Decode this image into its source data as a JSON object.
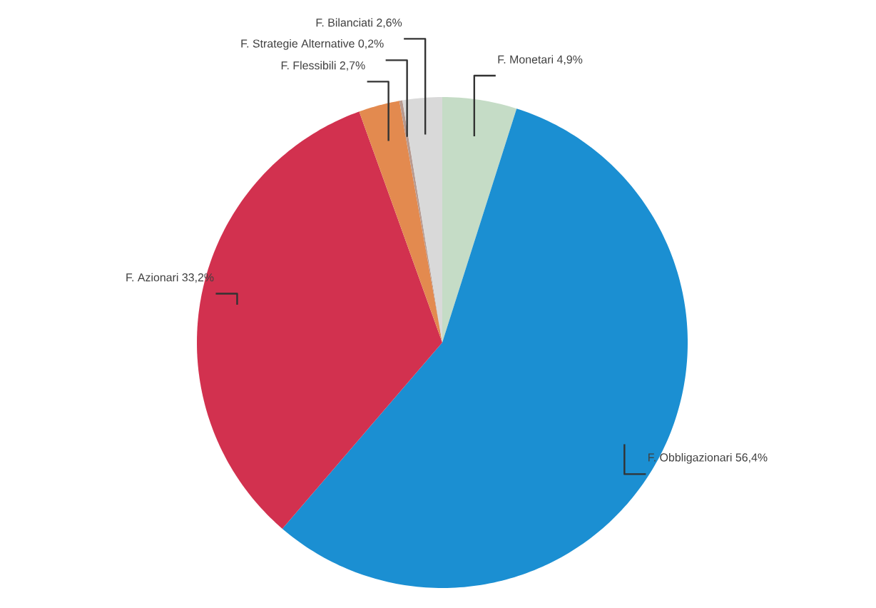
{
  "chart_data": {
    "type": "pie",
    "categories": [
      "F. Monetari",
      "F. Obbligazionari",
      "F. Azionari",
      "F. Flessibili",
      "F. Strategie Alternative",
      "F. Bilanciati"
    ],
    "values": [
      4.9,
      56.4,
      33.2,
      2.7,
      0.2,
      2.6
    ],
    "value_labels": [
      "4,9%",
      "56,4%",
      "33,2%",
      "2,7%",
      "0,2%",
      "2,6%"
    ],
    "colors": [
      "#c5dcc6",
      "#1b8fd2",
      "#d2314f",
      "#e38a4f",
      "#b89a90",
      "#d9d9d9"
    ]
  }
}
